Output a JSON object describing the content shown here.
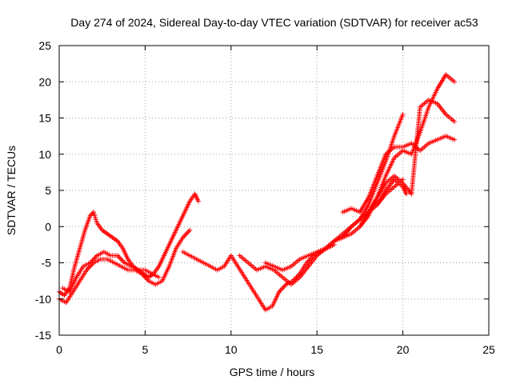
{
  "chart_data": {
    "type": "scatter",
    "title": "Day 274 of 2024, Sidereal Day-to-day VTEC variation (SDTVAR) for receiver ac53",
    "xlabel": "GPS time / hours",
    "ylabel": "SDTVAR / TECUs",
    "xlim": [
      0,
      25
    ],
    "ylim": [
      -15,
      25
    ],
    "xticks": [
      0,
      5,
      10,
      15,
      20,
      25
    ],
    "yticks": [
      -15,
      -10,
      -5,
      0,
      5,
      10,
      15,
      20,
      25
    ],
    "xtick_labels": [
      "0",
      "5",
      "10",
      "15",
      "20",
      "25"
    ],
    "ytick_labels": [
      "-15",
      "-10",
      "-5",
      "0",
      "5",
      "10",
      "15",
      "20",
      "25"
    ],
    "grid": true,
    "marker": "+",
    "color": "#ff0000",
    "series": [
      {
        "name": "trace-a",
        "x": [
          0.0,
          0.3,
          0.6,
          0.9,
          1.2,
          1.5,
          1.8,
          2.0,
          2.2,
          2.5,
          2.8,
          3.1,
          3.4,
          3.7,
          4.0,
          4.3,
          4.6,
          4.9,
          5.2,
          5.5,
          5.8,
          6.1,
          6.4,
          6.7,
          7.0,
          7.3,
          7.6,
          7.9,
          8.1
        ],
        "y": [
          -9.0,
          -9.5,
          -8.5,
          -5.5,
          -3.0,
          -0.5,
          1.5,
          2.0,
          0.5,
          -0.5,
          -1.0,
          -1.5,
          -2.0,
          -3.0,
          -4.5,
          -5.5,
          -6.0,
          -6.5,
          -7.0,
          -6.5,
          -5.5,
          -4.0,
          -2.5,
          -1.0,
          0.5,
          2.0,
          3.5,
          4.5,
          3.5
        ]
      },
      {
        "name": "trace-b",
        "x": [
          0.0,
          0.4,
          0.8,
          1.2,
          1.6,
          2.0,
          2.4,
          2.8,
          3.2,
          3.6,
          4.0,
          4.4,
          4.8,
          5.2,
          5.6,
          6.0,
          6.4,
          6.8,
          7.2,
          7.6
        ],
        "y": [
          -10.0,
          -10.5,
          -9.0,
          -7.5,
          -6.0,
          -5.0,
          -4.5,
          -4.5,
          -5.0,
          -5.5,
          -6.0,
          -6.0,
          -6.5,
          -7.5,
          -8.0,
          -7.5,
          -5.5,
          -3.0,
          -1.5,
          -0.5
        ]
      },
      {
        "name": "trace-c",
        "x": [
          0.2,
          0.6,
          1.0,
          1.4,
          1.8,
          2.2,
          2.6,
          3.0,
          3.4,
          3.8,
          4.2,
          4.6,
          5.0,
          5.4,
          5.8
        ],
        "y": [
          -8.5,
          -9.0,
          -7.0,
          -5.5,
          -5.0,
          -4.0,
          -3.5,
          -4.0,
          -4.0,
          -5.0,
          -5.5,
          -6.0,
          -6.0,
          -6.5,
          -7.0
        ]
      },
      {
        "name": "trace-d",
        "x": [
          7.2,
          7.6,
          8.0,
          8.4,
          8.8,
          9.2,
          9.6,
          10.0,
          10.4,
          10.8,
          11.2,
          11.6,
          12.0,
          12.4,
          12.8,
          13.2,
          13.6,
          14.0,
          14.4,
          14.8,
          15.2,
          15.6,
          16.0
        ],
        "y": [
          -3.5,
          -4.0,
          -4.5,
          -5.0,
          -5.5,
          -6.0,
          -5.5,
          -4.0,
          -5.5,
          -7.0,
          -8.5,
          -10.0,
          -11.5,
          -11.0,
          -9.0,
          -8.0,
          -7.5,
          -6.5,
          -5.0,
          -4.0,
          -3.5,
          -3.0,
          -2.5
        ]
      },
      {
        "name": "trace-e",
        "x": [
          10.5,
          11.0,
          11.5,
          12.0,
          12.5,
          13.0,
          13.5,
          14.0,
          14.5,
          15.0,
          15.5,
          16.0,
          16.5,
          17.0,
          17.5,
          18.0,
          18.5,
          19.0,
          19.5,
          20.0
        ],
        "y": [
          -4.0,
          -5.0,
          -6.0,
          -5.5,
          -6.0,
          -7.0,
          -8.0,
          -7.0,
          -5.5,
          -4.0,
          -3.0,
          -2.0,
          -1.0,
          0.0,
          1.0,
          2.0,
          3.0,
          4.5,
          5.5,
          6.5
        ]
      },
      {
        "name": "trace-f",
        "x": [
          12.0,
          12.5,
          13.0,
          13.5,
          14.0,
          14.5,
          15.0,
          15.5,
          16.0,
          16.5,
          17.0,
          17.5,
          18.0,
          18.5,
          19.0,
          19.5,
          20.0
        ],
        "y": [
          -5.0,
          -5.5,
          -6.0,
          -5.5,
          -4.5,
          -4.0,
          -3.5,
          -3.0,
          -2.0,
          -1.5,
          0.0,
          1.0,
          3.0,
          6.0,
          9.0,
          12.5,
          15.5
        ]
      },
      {
        "name": "trace-g",
        "x": [
          16.5,
          17.0,
          17.5,
          18.0,
          18.5,
          19.0,
          19.5,
          20.0,
          20.5,
          21.0,
          21.5,
          22.0,
          22.5,
          23.0
        ],
        "y": [
          2.0,
          2.5,
          2.0,
          4.0,
          7.0,
          10.0,
          11.0,
          11.0,
          11.5,
          10.5,
          11.5,
          12.0,
          12.5,
          12.0
        ]
      },
      {
        "name": "trace-h",
        "x": [
          16.0,
          16.5,
          17.0,
          17.5,
          18.0,
          18.5,
          19.0,
          19.5,
          20.0,
          20.5,
          21.0,
          21.5,
          22.0,
          22.5,
          23.0
        ],
        "y": [
          -2.0,
          -1.5,
          -1.0,
          0.0,
          1.5,
          4.0,
          7.0,
          9.5,
          10.5,
          10.0,
          13.0,
          16.5,
          19.0,
          21.0,
          20.0
        ]
      },
      {
        "name": "trace-i",
        "x": [
          17.5,
          18.0,
          18.5,
          19.0,
          19.5,
          20.0,
          20.5,
          21.0,
          21.5,
          22.0,
          22.5,
          23.0
        ],
        "y": [
          0.0,
          2.0,
          4.0,
          6.0,
          7.0,
          6.0,
          4.5,
          16.5,
          17.5,
          17.0,
          15.5,
          14.5
        ]
      },
      {
        "name": "trace-j",
        "x": [
          18.5,
          19.0,
          19.5,
          20.0,
          20.2
        ],
        "y": [
          3.0,
          5.0,
          6.5,
          5.5,
          4.5
        ]
      }
    ]
  }
}
